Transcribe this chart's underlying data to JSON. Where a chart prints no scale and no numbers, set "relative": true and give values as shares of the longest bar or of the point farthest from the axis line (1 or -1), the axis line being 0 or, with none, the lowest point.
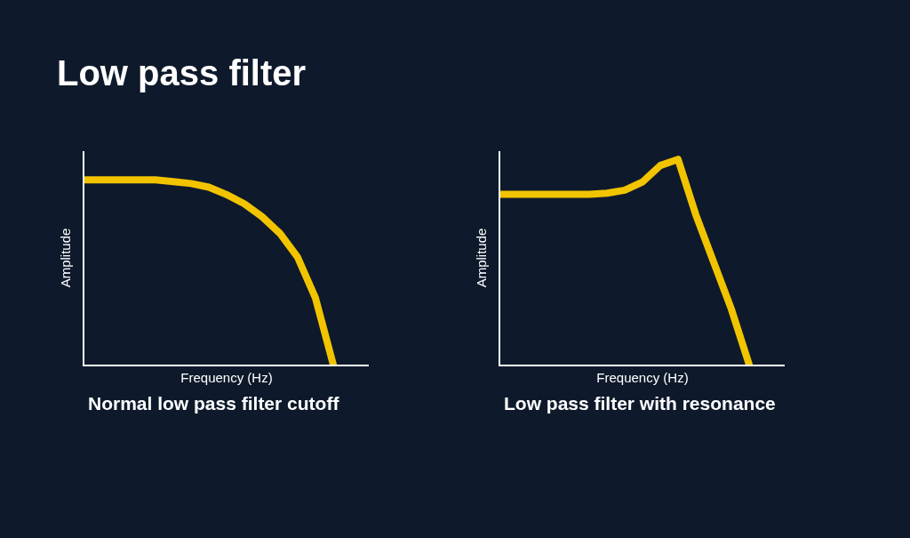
{
  "chart_data": [
    {
      "type": "line",
      "title": "Normal low pass filter cutoff",
      "xlabel": "Frequency (Hz)",
      "ylabel": "Amplitude",
      "annotations": [
        "Low pass filter"
      ],
      "relative": true,
      "grid": false,
      "line_style": "solid",
      "categories": [
        null,
        null,
        null,
        null,
        null,
        null,
        null,
        null,
        null,
        null,
        null,
        null,
        null,
        null,
        null
      ],
      "series": [
        {
          "color": "#f2c400",
          "values": [
            1,
            1,
            1,
            1,
            1,
            0.99,
            0.98,
            0.96,
            0.92,
            0.87,
            0.8,
            0.71,
            0.58,
            0.36,
            0
          ]
        }
      ]
    },
    {
      "type": "line",
      "title": "Low pass filter with resonance",
      "xlabel": "Frequency (Hz)",
      "ylabel": "Amplitude",
      "relative": true,
      "grid": false,
      "line_style": "solid",
      "categories": [
        null,
        null,
        null,
        null,
        null,
        null,
        null,
        null,
        null,
        null,
        null,
        null,
        null,
        null,
        null
      ],
      "series": [
        {
          "color": "#f2c400",
          "values": [
            0.83,
            0.83,
            0.83,
            0.83,
            0.83,
            0.83,
            0.835,
            0.85,
            0.89,
            0.97,
            1,
            0.73,
            0.5,
            0.27,
            0
          ]
        }
      ]
    }
  ]
}
